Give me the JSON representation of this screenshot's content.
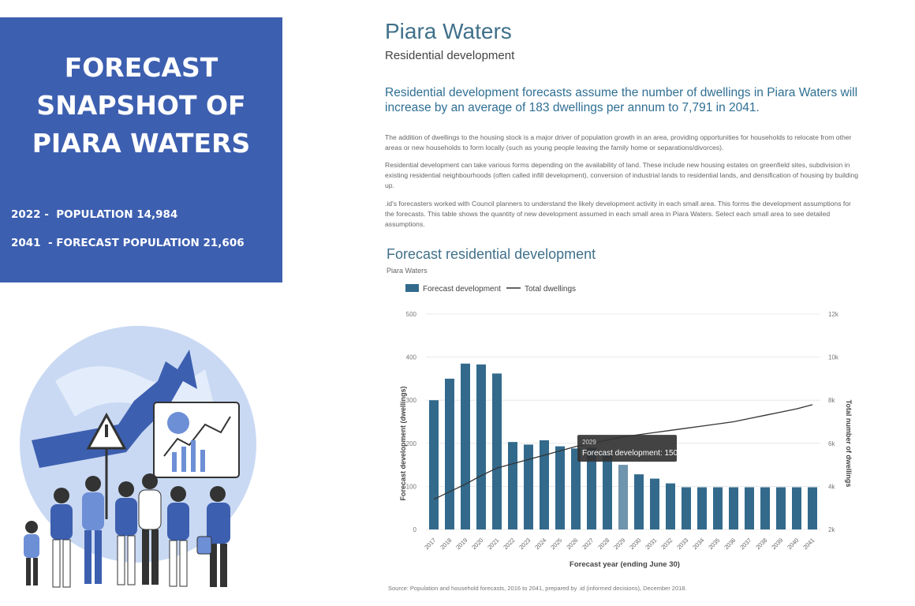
{
  "left_panel": {
    "title_lines": [
      "FORECAST",
      "SNAPSHOT OF",
      "PIARA WATERS"
    ],
    "stats": [
      "2022 -  POPULATION 14,984",
      "2041  - FORECAST POPULATION 21,606"
    ]
  },
  "header": {
    "title": "Piara Waters",
    "subtitle": "Residential development"
  },
  "lead": "Residential development forecasts assume the number of dwellings in Piara Waters will increase by an average of 183 dwellings per annum to 7,791 in 2041.",
  "paragraphs": [
    "The addition of dwellings to the housing stock is a major driver of population growth in an area, providing opportunities for households to relocate from other areas or new households to form locally (such as young people leaving the family home or separations/divorces).",
    "Residential development can take various forms depending on the availability of land. These include new housing estates on greenfield sites, subdivision in existing residential neighbourhoods (often called infill development), conversion of industrial lands to residential lands, and densification of housing by building up.",
    ".id's forecasters worked with Council planners to understand the likely development activity in each small area. This forms the development assumptions for the forecasts. This table shows the quantity of new development assumed in each small area in Piara Waters. Select each small area to see detailed assumptions."
  ],
  "source": "Source: Population and household forecasts, 2016 to 2041, prepared by .id (informed decisions), December 2018.",
  "colors": {
    "panel": "#3d5fb0",
    "bar": "#336a8c",
    "bar_highlight": "#6f94ad",
    "line": "#333333"
  },
  "chart_data": {
    "type": "bar",
    "title": "Forecast residential development",
    "subtitle": "Piara Waters",
    "categories": [
      "2017",
      "2018",
      "2019",
      "2020",
      "2021",
      "2022",
      "2023",
      "2024",
      "2025",
      "2026",
      "2027",
      "2028",
      "2029",
      "2030",
      "2031",
      "2032",
      "2033",
      "2034",
      "2035",
      "2036",
      "2037",
      "2038",
      "2039",
      "2040",
      "2041"
    ],
    "series": [
      {
        "name": "Forecast development",
        "axis": "left",
        "values": [
          300,
          350,
          385,
          383,
          362,
          203,
          197,
          207,
          193,
          188,
          190,
          180,
          150,
          128,
          118,
          107,
          98,
          98,
          98,
          98,
          98,
          98,
          98,
          98,
          98
        ]
      },
      {
        "name": "Total dwellings",
        "axis": "right",
        "kind": "line",
        "values": [
          3400,
          3750,
          4100,
          4500,
          4850,
          5050,
          5250,
          5450,
          5650,
          5850,
          6000,
          6150,
          6300,
          6400,
          6500,
          6600,
          6700,
          6800,
          6900,
          7000,
          7150,
          7300,
          7450,
          7600,
          7791
        ]
      }
    ],
    "xlabel": "Forecast year (ending June 30)",
    "ylabel": "Forecast development (dwellings)",
    "y2label": "Total number of dwellings",
    "ylim": [
      0,
      500
    ],
    "y2lim": [
      2000,
      12000
    ],
    "yticks": [
      "0",
      "100",
      "200",
      "300",
      "400",
      "500"
    ],
    "y2ticks": [
      "2k",
      "4k",
      "6k",
      "8k",
      "10k",
      "12k"
    ],
    "highlight_index": 12,
    "tooltip": {
      "year": "2029",
      "label": "Forecast development: 150"
    },
    "legend": [
      "Forecast development",
      "Total dwellings"
    ]
  }
}
